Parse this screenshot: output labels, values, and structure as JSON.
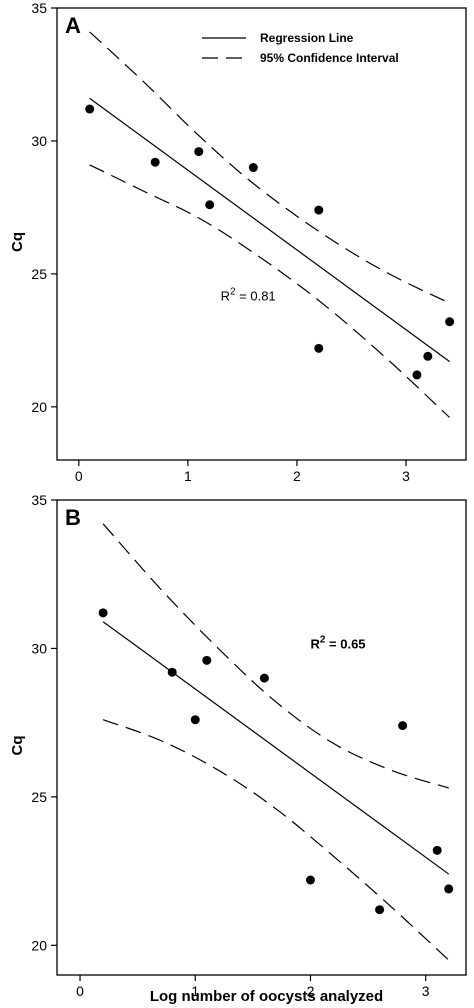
{
  "chart_data": [
    {
      "type": "scatter",
      "panel_label": "A",
      "ylabel": "Cq",
      "xlim": [
        -0.2,
        3.55
      ],
      "ylim": [
        18,
        35
      ],
      "x_ticks": [
        0,
        1,
        2,
        3
      ],
      "y_ticks": [
        20,
        25,
        30,
        35
      ],
      "points": [
        {
          "x": 0.1,
          "y": 31.2
        },
        {
          "x": 0.7,
          "y": 29.2
        },
        {
          "x": 1.1,
          "y": 29.6
        },
        {
          "x": 1.2,
          "y": 27.6
        },
        {
          "x": 1.6,
          "y": 29.0
        },
        {
          "x": 2.2,
          "y": 27.4
        },
        {
          "x": 2.2,
          "y": 22.2
        },
        {
          "x": 3.1,
          "y": 21.2
        },
        {
          "x": 3.2,
          "y": 21.9
        },
        {
          "x": 3.4,
          "y": 23.2
        }
      ],
      "regression": {
        "x": [
          0.1,
          3.4
        ],
        "y": [
          31.6,
          21.7
        ]
      },
      "ci_upper": {
        "x": [
          0.1,
          0.6,
          1.1,
          1.6,
          2.2,
          2.8,
          3.4
        ],
        "y": [
          34.1,
          32.2,
          30.2,
          28.4,
          26.6,
          25.1,
          23.9
        ]
      },
      "ci_lower": {
        "x": [
          0.1,
          0.6,
          1.1,
          1.6,
          2.2,
          2.8,
          3.4
        ],
        "y": [
          29.1,
          28.1,
          27.1,
          25.8,
          24.0,
          21.9,
          19.6
        ]
      },
      "legend": {
        "position": "top-right",
        "items": [
          {
            "label": "Regression Line",
            "style": "solid"
          },
          {
            "label": "95% Confidence Interval",
            "style": "dashed"
          }
        ]
      },
      "annotation": {
        "text_base": "R",
        "text_sup": "2",
        "text_rest": " = 0.81",
        "x": 1.3,
        "y": 24.0
      }
    },
    {
      "type": "scatter",
      "panel_label": "B",
      "ylabel": "Cq",
      "xlabel": "Log number of oocysts analyzed",
      "xlim": [
        -0.2,
        3.35
      ],
      "ylim": [
        19,
        35
      ],
      "x_ticks": [
        0,
        1,
        2,
        3
      ],
      "y_ticks": [
        20,
        25,
        30,
        35
      ],
      "points": [
        {
          "x": 0.2,
          "y": 31.2
        },
        {
          "x": 0.8,
          "y": 29.2
        },
        {
          "x": 1.0,
          "y": 27.6
        },
        {
          "x": 1.1,
          "y": 29.6
        },
        {
          "x": 1.6,
          "y": 29.0
        },
        {
          "x": 2.0,
          "y": 22.2
        },
        {
          "x": 2.6,
          "y": 21.2
        },
        {
          "x": 2.8,
          "y": 27.4
        },
        {
          "x": 3.1,
          "y": 23.2
        },
        {
          "x": 3.2,
          "y": 21.9
        }
      ],
      "regression": {
        "x": [
          0.2,
          3.2
        ],
        "y": [
          30.9,
          22.4
        ]
      },
      "ci_upper": {
        "x": [
          0.2,
          0.7,
          1.2,
          1.7,
          2.2,
          2.7,
          3.2
        ],
        "y": [
          34.2,
          32.0,
          30.0,
          28.2,
          26.8,
          25.9,
          25.3
        ]
      },
      "ci_lower": {
        "x": [
          0.2,
          0.7,
          1.2,
          1.7,
          2.2,
          2.7,
          3.2
        ],
        "y": [
          27.6,
          26.9,
          25.9,
          24.6,
          23.0,
          21.3,
          19.5
        ]
      },
      "annotation": {
        "text_base": "R",
        "text_sup": "2",
        "text_rest": " = 0.65",
        "x": 2.0,
        "y": 30.0
      }
    }
  ]
}
